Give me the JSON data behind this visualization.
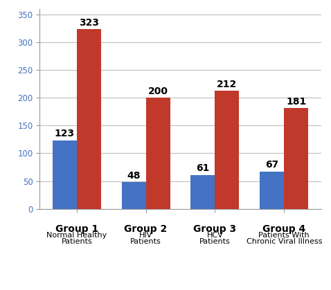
{
  "groups_line1": [
    "Group 1",
    "Group 2",
    "Group 3",
    "Group 4"
  ],
  "groups_line2": [
    "Normal Healthy",
    "HIV",
    "HCV",
    "Patients With"
  ],
  "groups_line3": [
    "Patients",
    "Patients",
    "Patients",
    "Chronic Viral Illness"
  ],
  "blue_values": [
    123,
    48,
    61,
    67
  ],
  "red_values": [
    323,
    200,
    212,
    181
  ],
  "blue_color": "#4472c4",
  "red_color": "#c0392b",
  "ylim": [
    0,
    360
  ],
  "yticks": [
    0,
    50,
    100,
    150,
    200,
    250,
    300,
    350
  ],
  "bar_width": 0.35,
  "value_fontsize": 10,
  "tick_label_fontsize": 8.5,
  "group_label_fontsize": 10,
  "sub_label_fontsize": 8,
  "background_color": "#ffffff",
  "grid_color": "#c0c0c0"
}
